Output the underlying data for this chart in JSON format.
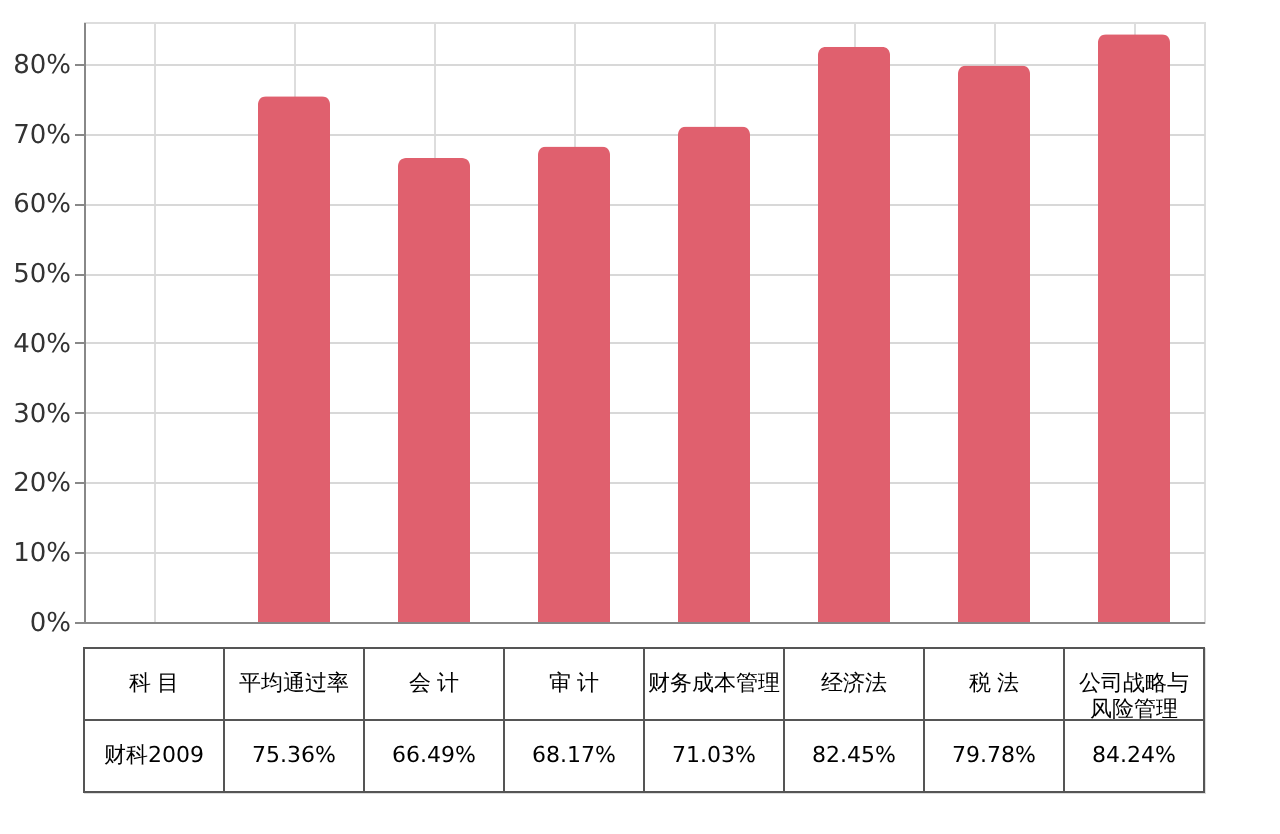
{
  "chart_data": {
    "type": "bar",
    "categories": [
      "平均通过率",
      "会 计",
      "审 计",
      "财务成本管理",
      "经济法",
      "税 法",
      "公司战略与风险管理"
    ],
    "series": [
      {
        "name": "财科2009",
        "color": "#e0606e",
        "values": [
          75.36,
          66.49,
          68.17,
          71.03,
          82.45,
          79.78,
          84.24
        ],
        "value_labels": [
          "75.36%",
          "66.49%",
          "68.17%",
          "71.03%",
          "82.45%",
          "79.78%",
          "84.24%"
        ]
      }
    ],
    "legend_title": "科 目",
    "ylim": [
      0,
      86
    ],
    "yticks": [
      {
        "value": 0,
        "label": "0%"
      },
      {
        "value": 10,
        "label": "10%"
      },
      {
        "value": 20,
        "label": "20%"
      },
      {
        "value": 30,
        "label": "30%"
      },
      {
        "value": 40,
        "label": "40%"
      },
      {
        "value": 50,
        "label": "50%"
      },
      {
        "value": 60,
        "label": "60%"
      },
      {
        "value": 70,
        "label": "70%"
      },
      {
        "value": 80,
        "label": "80%"
      }
    ],
    "grid": true,
    "tick_labels": "y"
  }
}
